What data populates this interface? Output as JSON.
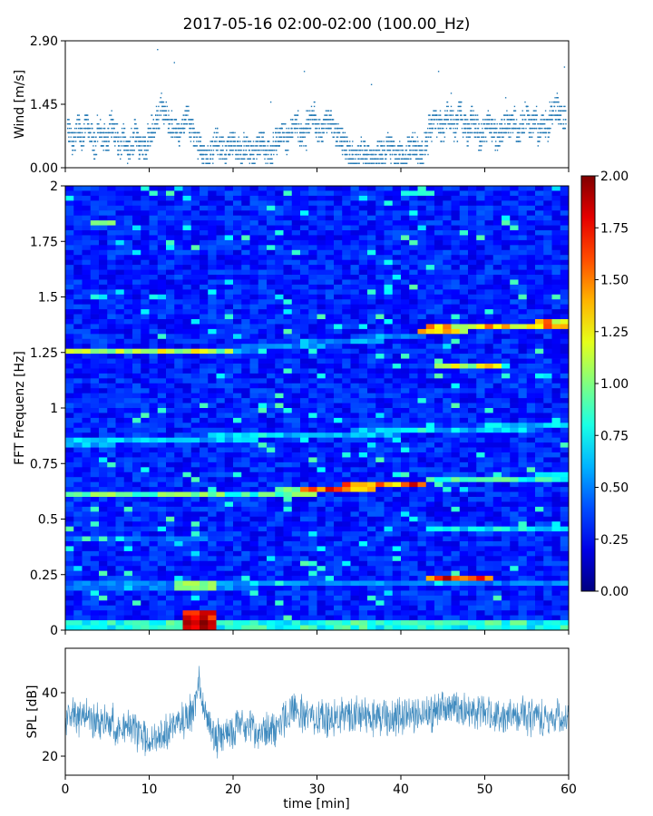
{
  "figure": {
    "title": "2017-05-16 02:00-02:00 (100.00_Hz)"
  },
  "chart_data": [
    {
      "type": "scatter",
      "name": "wind",
      "ylabel": "Wind [m/s]",
      "xlim": [
        0,
        60
      ],
      "ylim": [
        0,
        2.9
      ],
      "yticks": [
        "0.00",
        "1.45",
        "2.90"
      ],
      "color": "#1f77b4",
      "points_x": [
        0.5,
        1.0,
        1.5,
        2.0,
        2.5,
        3.0,
        3.5,
        4.0,
        4.5,
        5.0,
        5.5,
        6.0,
        6.5,
        7.0,
        7.5,
        8.0,
        8.5,
        9.0,
        9.5,
        10.0,
        10.5,
        11.0,
        11.5,
        12.0,
        12.5,
        13.0,
        13.5,
        14.0,
        14.5,
        15.0,
        15.5,
        16.0,
        16.5,
        17.0,
        17.5,
        18.0,
        18.5,
        19.0,
        19.5,
        20.0,
        20.5,
        21.0,
        21.5,
        22.0,
        22.5,
        23.0,
        23.5,
        24.0,
        24.5,
        25.0,
        25.5,
        26.0,
        26.5,
        27.0,
        27.5,
        28.0,
        28.5,
        29.0,
        29.5,
        30.0,
        30.5,
        31.0,
        31.5,
        32.0,
        32.5,
        33.0,
        33.5,
        34.0,
        34.5,
        35.0,
        35.5,
        36.0,
        36.5,
        37.0,
        37.5,
        38.0,
        38.5,
        39.0,
        39.5,
        40.0,
        40.5,
        41.0,
        41.5,
        42.0,
        42.5,
        43.0,
        43.5,
        44.0,
        44.5,
        45.0,
        45.5,
        46.0,
        46.5,
        47.0,
        47.5,
        48.0,
        48.5,
        49.0,
        49.5,
        50.0,
        50.5,
        51.0,
        51.5,
        52.0,
        52.5,
        53.0,
        53.5,
        54.0,
        54.5,
        55.0,
        55.5,
        56.0,
        56.5,
        57.0,
        57.5,
        58.0,
        58.5,
        59.0,
        59.5,
        11.0,
        13.0,
        24.5,
        28.5,
        36.5,
        41.0,
        44.5,
        46.0,
        52.5,
        59.5
      ],
      "points_y": [
        0.8,
        0.6,
        0.9,
        0.7,
        1.0,
        0.8,
        0.5,
        0.9,
        0.7,
        0.6,
        1.0,
        0.8,
        0.5,
        0.7,
        0.4,
        0.6,
        0.8,
        0.5,
        0.4,
        0.7,
        0.9,
        1.1,
        1.4,
        1.2,
        1.0,
        0.9,
        0.8,
        1.0,
        1.2,
        0.9,
        0.7,
        0.5,
        0.3,
        0.2,
        0.4,
        0.6,
        0.5,
        0.4,
        0.5,
        0.6,
        0.4,
        0.3,
        0.5,
        0.4,
        0.3,
        0.5,
        0.6,
        0.4,
        0.3,
        0.6,
        0.7,
        0.8,
        0.6,
        0.9,
        1.0,
        0.8,
        0.7,
        1.0,
        1.2,
        0.9,
        0.8,
        1.0,
        1.1,
        0.9,
        0.7,
        0.6,
        0.5,
        0.3,
        0.2,
        0.3,
        0.4,
        0.3,
        0.2,
        0.3,
        0.4,
        0.3,
        0.5,
        0.4,
        0.2,
        0.3,
        0.2,
        0.4,
        0.5,
        0.4,
        0.3,
        0.6,
        0.9,
        1.1,
        1.0,
        0.8,
        1.2,
        1.1,
        0.9,
        1.3,
        1.0,
        0.8,
        1.1,
        0.9,
        0.7,
        0.8,
        1.0,
        0.9,
        0.7,
        0.8,
        1.0,
        0.9,
        1.1,
        0.8,
        1.0,
        1.2,
        0.9,
        1.1,
        0.8,
        1.0,
        0.9,
        1.2,
        1.4,
        1.2,
        1.1,
        2.7,
        2.4,
        1.5,
        2.2,
        1.9,
        0.7,
        2.2,
        1.7,
        1.6,
        2.3
      ],
      "y_jitter": 0.55,
      "points_per_bin": 26
    },
    {
      "type": "heatmap",
      "name": "spectrogram",
      "ylabel": "FFT Frequenz [Hz]",
      "xlim": [
        0,
        60
      ],
      "ylim": [
        0,
        2
      ],
      "yticks": [
        "0",
        "0.25",
        "0.5",
        "0.75",
        "1",
        "1.25",
        "1.5",
        "1.75",
        "2"
      ],
      "ytick_values": [
        0,
        0.25,
        0.5,
        0.75,
        1,
        1.25,
        1.5,
        1.75,
        2
      ],
      "colormap": "jet",
      "clim": [
        0,
        2
      ],
      "background_level": 0.18,
      "lines": [
        {
          "x_start": 0,
          "x_end": 60,
          "freq_start": 0.02,
          "freq_end": 0.02,
          "level": 0.9
        },
        {
          "x_start": 0,
          "x_end": 60,
          "freq_start": 0.2,
          "freq_end": 0.21,
          "level": 0.55
        },
        {
          "x_start": 0,
          "x_end": 20,
          "freq_start": 0.41,
          "freq_end": 0.41,
          "level": 0.5
        },
        {
          "x_start": 0,
          "x_end": 30,
          "freq_start": 0.61,
          "freq_end": 0.62,
          "level": 1.0
        },
        {
          "x_start": 28,
          "x_end": 43,
          "freq_start": 0.63,
          "freq_end": 0.66,
          "level": 1.7
        },
        {
          "x_start": 43,
          "x_end": 60,
          "freq_start": 0.67,
          "freq_end": 0.69,
          "level": 0.9
        },
        {
          "x_start": 0,
          "x_end": 60,
          "freq_start": 0.84,
          "freq_end": 0.92,
          "level": 0.7
        },
        {
          "x_start": 0,
          "x_end": 20,
          "freq_start": 1.25,
          "freq_end": 1.25,
          "level": 1.2
        },
        {
          "x_start": 20,
          "x_end": 43,
          "freq_start": 1.26,
          "freq_end": 1.33,
          "level": 0.6
        },
        {
          "x_start": 42,
          "x_end": 60,
          "freq_start": 1.35,
          "freq_end": 1.38,
          "level": 1.5
        },
        {
          "x_start": 44,
          "x_end": 52,
          "freq_start": 1.19,
          "freq_end": 1.19,
          "level": 1.3
        },
        {
          "x_start": 3,
          "x_end": 6,
          "freq_start": 1.84,
          "freq_end": 1.84,
          "level": 1.3
        },
        {
          "x_start": 40,
          "x_end": 44,
          "freq_start": 1.96,
          "freq_end": 1.96,
          "level": 1.1
        },
        {
          "x_start": 43,
          "x_end": 51,
          "freq_start": 0.23,
          "freq_end": 0.23,
          "level": 1.8
        },
        {
          "x_start": 43,
          "x_end": 60,
          "freq_start": 0.46,
          "freq_end": 0.46,
          "level": 0.8
        }
      ],
      "hotspots": [
        {
          "x_start": 14,
          "x_end": 18,
          "freq_start": 0.0,
          "freq_end": 0.03,
          "level": 2.0
        },
        {
          "x_start": 14,
          "x_end": 18,
          "freq_start": 0.05,
          "freq_end": 0.08,
          "level": 1.9
        },
        {
          "x_start": 13.5,
          "x_end": 17.5,
          "freq_start": 0.18,
          "freq_end": 0.21,
          "level": 1.1
        }
      ]
    },
    {
      "type": "line",
      "name": "spl",
      "ylabel": "SPL [dB]",
      "xlabel": "time [min]",
      "xlim": [
        0,
        60
      ],
      "ylim": [
        14,
        54
      ],
      "yticks": [
        "20",
        "40"
      ],
      "ytick_values": [
        20,
        40
      ],
      "xticks": [
        "0",
        "10",
        "20",
        "30",
        "40",
        "50",
        "60"
      ],
      "xtick_values": [
        0,
        10,
        20,
        30,
        40,
        50,
        60
      ],
      "color": "#1f77b4",
      "trend_x": [
        0,
        2,
        4,
        6,
        8,
        9,
        10,
        11,
        12,
        13,
        14,
        15,
        15.5,
        16,
        16.5,
        17,
        18,
        19,
        20,
        22,
        24,
        25,
        26,
        27,
        28,
        30,
        32,
        34,
        36,
        38,
        40,
        42,
        44,
        46,
        48,
        50,
        52,
        54,
        56,
        58,
        60
      ],
      "trend_y": [
        31,
        33,
        31,
        30,
        29,
        27,
        25,
        26,
        28,
        29,
        31,
        33,
        36,
        45,
        36,
        31,
        26,
        27,
        29,
        29,
        27,
        29,
        32,
        35,
        33,
        32,
        32,
        33,
        33,
        32,
        33,
        33,
        34,
        35,
        34,
        33,
        32,
        33,
        32,
        32,
        32
      ],
      "noise_amplitude": 7
    },
    {
      "type": "colorbar",
      "name": "colorbar",
      "clim": [
        0,
        2
      ],
      "colormap": "jet",
      "ticks": [
        "0.00",
        "0.25",
        "0.50",
        "0.75",
        "1.00",
        "1.25",
        "1.50",
        "1.75",
        "2.00"
      ],
      "tick_values": [
        0,
        0.25,
        0.5,
        0.75,
        1.0,
        1.25,
        1.5,
        1.75,
        2.0
      ]
    }
  ]
}
